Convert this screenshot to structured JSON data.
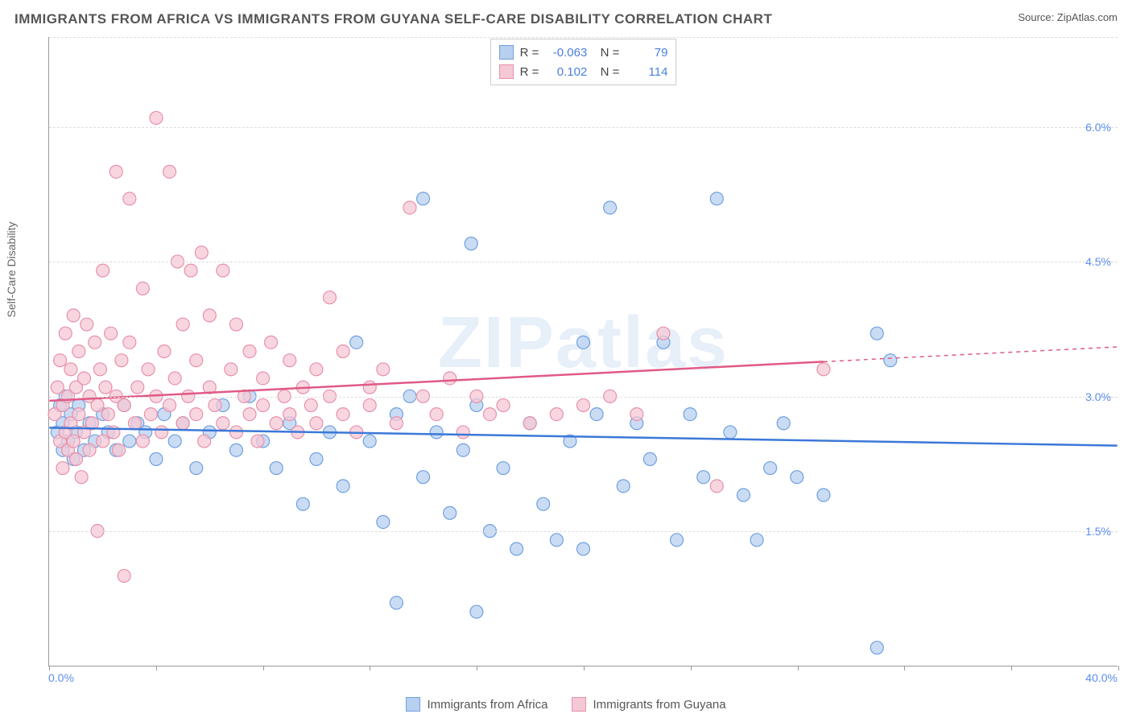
{
  "header": {
    "title": "IMMIGRANTS FROM AFRICA VS IMMIGRANTS FROM GUYANA SELF-CARE DISABILITY CORRELATION CHART",
    "source": "Source: ZipAtlas.com"
  },
  "y_axis": {
    "label": "Self-Care Disability"
  },
  "watermark": "ZIPatlas",
  "chart": {
    "type": "scatter",
    "xlim": [
      0,
      40
    ],
    "ylim": [
      0,
      7.0
    ],
    "x_ticks": [
      0,
      4,
      8,
      12,
      16,
      20,
      24,
      28,
      32,
      36,
      40
    ],
    "y_ticks": [
      1.5,
      3.0,
      4.5,
      6.0
    ],
    "y_tick_labels": [
      "1.5%",
      "3.0%",
      "4.5%",
      "6.0%"
    ],
    "x_min_label": "0.0%",
    "x_max_label": "40.0%",
    "grid_color": "#dddddd",
    "background_color": "#ffffff",
    "marker_radius": 8,
    "marker_stroke_width": 1.2,
    "line_width": 2.5,
    "series": [
      {
        "name": "Immigrants from Africa",
        "fill": "#b8d0f0",
        "stroke": "#6fa0e0",
        "line_color": "#3b78d8",
        "R": "-0.063",
        "N": "79",
        "trend": {
          "y_at_x0": 2.65,
          "y_at_x40": 2.45,
          "solid_until": 40
        },
        "points": [
          [
            0.3,
            2.6
          ],
          [
            0.4,
            2.9
          ],
          [
            0.5,
            2.4
          ],
          [
            0.5,
            2.7
          ],
          [
            0.6,
            3.0
          ],
          [
            0.7,
            2.5
          ],
          [
            0.8,
            2.8
          ],
          [
            0.9,
            2.3
          ],
          [
            1.0,
            2.6
          ],
          [
            1.1,
            2.9
          ],
          [
            1.3,
            2.4
          ],
          [
            1.5,
            2.7
          ],
          [
            1.7,
            2.5
          ],
          [
            2.0,
            2.8
          ],
          [
            2.2,
            2.6
          ],
          [
            2.5,
            2.4
          ],
          [
            2.8,
            2.9
          ],
          [
            3.0,
            2.5
          ],
          [
            3.3,
            2.7
          ],
          [
            3.6,
            2.6
          ],
          [
            4.0,
            2.3
          ],
          [
            4.3,
            2.8
          ],
          [
            4.7,
            2.5
          ],
          [
            5.0,
            2.7
          ],
          [
            5.5,
            2.2
          ],
          [
            6.0,
            2.6
          ],
          [
            6.5,
            2.9
          ],
          [
            7.0,
            2.4
          ],
          [
            7.5,
            3.0
          ],
          [
            8.0,
            2.5
          ],
          [
            8.5,
            2.2
          ],
          [
            9.0,
            2.7
          ],
          [
            9.5,
            1.8
          ],
          [
            10.0,
            2.3
          ],
          [
            10.5,
            2.6
          ],
          [
            11.0,
            2.0
          ],
          [
            11.5,
            3.6
          ],
          [
            12.0,
            2.5
          ],
          [
            12.5,
            1.6
          ],
          [
            13.0,
            2.8
          ],
          [
            13.0,
            0.7
          ],
          [
            13.5,
            3.0
          ],
          [
            14.0,
            2.1
          ],
          [
            14.0,
            5.2
          ],
          [
            14.5,
            2.6
          ],
          [
            15.0,
            1.7
          ],
          [
            15.5,
            2.4
          ],
          [
            15.8,
            4.7
          ],
          [
            16.0,
            2.9
          ],
          [
            16.0,
            0.6
          ],
          [
            16.5,
            1.5
          ],
          [
            17.0,
            2.2
          ],
          [
            17.5,
            1.3
          ],
          [
            18.0,
            2.7
          ],
          [
            18.5,
            1.8
          ],
          [
            19.0,
            1.4
          ],
          [
            19.5,
            2.5
          ],
          [
            20.0,
            3.6
          ],
          [
            20.0,
            1.3
          ],
          [
            20.5,
            2.8
          ],
          [
            21.0,
            5.1
          ],
          [
            21.5,
            2.0
          ],
          [
            22.0,
            2.7
          ],
          [
            22.5,
            2.3
          ],
          [
            23.0,
            3.6
          ],
          [
            23.5,
            1.4
          ],
          [
            24.0,
            2.8
          ],
          [
            24.5,
            2.1
          ],
          [
            25.0,
            5.2
          ],
          [
            25.5,
            2.6
          ],
          [
            26.0,
            1.9
          ],
          [
            26.5,
            1.4
          ],
          [
            27.0,
            2.2
          ],
          [
            27.5,
            2.7
          ],
          [
            31.0,
            3.7
          ],
          [
            31.5,
            3.4
          ],
          [
            31.0,
            0.2
          ],
          [
            28.0,
            2.1
          ],
          [
            29.0,
            1.9
          ]
        ]
      },
      {
        "name": "Immigrants from Guyana",
        "fill": "#f5c8d5",
        "stroke": "#e890aa",
        "line_color": "#e05a85",
        "R": "0.102",
        "N": "114",
        "trend": {
          "y_at_x0": 2.95,
          "y_at_x40": 3.55,
          "solid_until": 29
        },
        "points": [
          [
            0.2,
            2.8
          ],
          [
            0.3,
            3.1
          ],
          [
            0.4,
            2.5
          ],
          [
            0.4,
            3.4
          ],
          [
            0.5,
            2.9
          ],
          [
            0.5,
            2.2
          ],
          [
            0.6,
            3.7
          ],
          [
            0.6,
            2.6
          ],
          [
            0.7,
            3.0
          ],
          [
            0.7,
            2.4
          ],
          [
            0.8,
            3.3
          ],
          [
            0.8,
            2.7
          ],
          [
            0.9,
            3.9
          ],
          [
            0.9,
            2.5
          ],
          [
            1.0,
            3.1
          ],
          [
            1.0,
            2.3
          ],
          [
            1.1,
            3.5
          ],
          [
            1.1,
            2.8
          ],
          [
            1.2,
            2.1
          ],
          [
            1.3,
            3.2
          ],
          [
            1.3,
            2.6
          ],
          [
            1.4,
            3.8
          ],
          [
            1.5,
            2.4
          ],
          [
            1.5,
            3.0
          ],
          [
            1.6,
            2.7
          ],
          [
            1.7,
            3.6
          ],
          [
            1.8,
            1.5
          ],
          [
            1.8,
            2.9
          ],
          [
            1.9,
            3.3
          ],
          [
            2.0,
            2.5
          ],
          [
            2.0,
            4.4
          ],
          [
            2.1,
            3.1
          ],
          [
            2.2,
            2.8
          ],
          [
            2.3,
            3.7
          ],
          [
            2.4,
            2.6
          ],
          [
            2.5,
            3.0
          ],
          [
            2.5,
            5.5
          ],
          [
            2.6,
            2.4
          ],
          [
            2.7,
            3.4
          ],
          [
            2.8,
            1.0
          ],
          [
            2.8,
            2.9
          ],
          [
            3.0,
            3.6
          ],
          [
            3.0,
            5.2
          ],
          [
            3.2,
            2.7
          ],
          [
            3.3,
            3.1
          ],
          [
            3.5,
            2.5
          ],
          [
            3.5,
            4.2
          ],
          [
            3.7,
            3.3
          ],
          [
            3.8,
            2.8
          ],
          [
            4.0,
            3.0
          ],
          [
            4.0,
            6.1
          ],
          [
            4.2,
            2.6
          ],
          [
            4.3,
            3.5
          ],
          [
            4.5,
            2.9
          ],
          [
            4.5,
            5.5
          ],
          [
            4.7,
            3.2
          ],
          [
            4.8,
            4.5
          ],
          [
            5.0,
            2.7
          ],
          [
            5.0,
            3.8
          ],
          [
            5.2,
            3.0
          ],
          [
            5.3,
            4.4
          ],
          [
            5.5,
            2.8
          ],
          [
            5.5,
            3.4
          ],
          [
            5.7,
            4.6
          ],
          [
            5.8,
            2.5
          ],
          [
            6.0,
            3.1
          ],
          [
            6.0,
            3.9
          ],
          [
            6.2,
            2.9
          ],
          [
            6.5,
            4.4
          ],
          [
            6.5,
            2.7
          ],
          [
            6.8,
            3.3
          ],
          [
            7.0,
            2.6
          ],
          [
            7.0,
            3.8
          ],
          [
            7.3,
            3.0
          ],
          [
            7.5,
            2.8
          ],
          [
            7.5,
            3.5
          ],
          [
            7.8,
            2.5
          ],
          [
            8.0,
            3.2
          ],
          [
            8.0,
            2.9
          ],
          [
            8.3,
            3.6
          ],
          [
            8.5,
            2.7
          ],
          [
            8.8,
            3.0
          ],
          [
            9.0,
            2.8
          ],
          [
            9.0,
            3.4
          ],
          [
            9.3,
            2.6
          ],
          [
            9.5,
            3.1
          ],
          [
            9.8,
            2.9
          ],
          [
            10.0,
            3.3
          ],
          [
            10.0,
            2.7
          ],
          [
            10.5,
            4.1
          ],
          [
            10.5,
            3.0
          ],
          [
            11.0,
            2.8
          ],
          [
            11.0,
            3.5
          ],
          [
            11.5,
            2.6
          ],
          [
            12.0,
            3.1
          ],
          [
            12.0,
            2.9
          ],
          [
            12.5,
            3.3
          ],
          [
            13.0,
            2.7
          ],
          [
            13.5,
            5.1
          ],
          [
            14.0,
            3.0
          ],
          [
            14.5,
            2.8
          ],
          [
            15.0,
            3.2
          ],
          [
            15.5,
            2.6
          ],
          [
            16.0,
            3.0
          ],
          [
            16.5,
            2.8
          ],
          [
            17.0,
            2.9
          ],
          [
            18.0,
            2.7
          ],
          [
            19.0,
            2.8
          ],
          [
            20.0,
            2.9
          ],
          [
            21.0,
            3.0
          ],
          [
            22.0,
            2.8
          ],
          [
            23.0,
            3.7
          ],
          [
            25.0,
            2.0
          ],
          [
            29.0,
            3.3
          ]
        ]
      }
    ]
  },
  "bottom_legend": [
    {
      "label": "Immigrants from Africa",
      "fill": "#b8d0f0",
      "stroke": "#6fa0e0"
    },
    {
      "label": "Immigrants from Guyana",
      "fill": "#f5c8d5",
      "stroke": "#e890aa"
    }
  ]
}
